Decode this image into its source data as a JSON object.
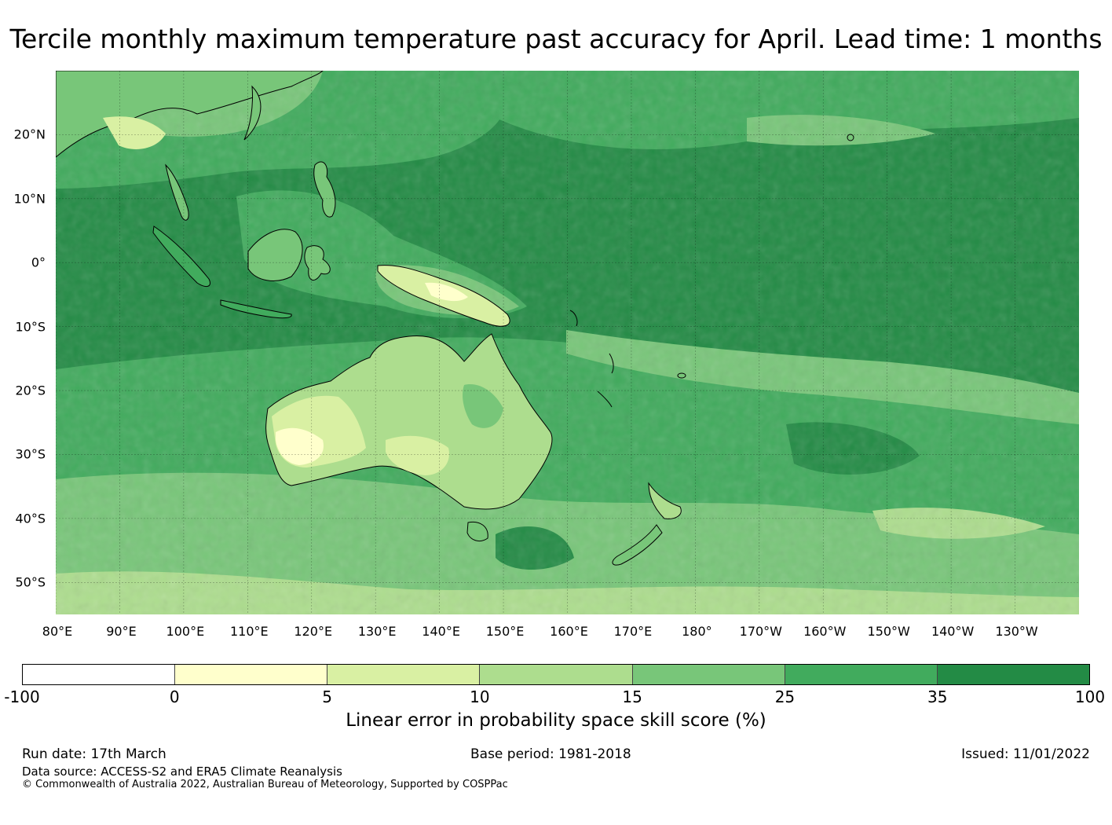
{
  "title": "Tercile monthly maximum temperature past accuracy for April. Lead time: 1 months",
  "map": {
    "lat_labels": [
      "20°N",
      "10°N",
      "0°",
      "10°S",
      "20°S",
      "30°S",
      "40°S",
      "50°S"
    ],
    "lon_labels": [
      "80°E",
      "90°E",
      "100°E",
      "110°E",
      "120°E",
      "130°E",
      "140°E",
      "150°E",
      "160°E",
      "170°E",
      "180°",
      "170°W",
      "160°W",
      "150°W",
      "140°W",
      "130°W"
    ],
    "lat_values": [
      20,
      10,
      0,
      -10,
      -20,
      -30,
      -40,
      -50
    ],
    "lon_values": [
      80,
      90,
      100,
      110,
      120,
      130,
      140,
      150,
      160,
      170,
      180,
      190,
      200,
      210,
      220,
      230
    ],
    "lat_range": [
      -55,
      30
    ],
    "lon_range": [
      80,
      240
    ]
  },
  "colorbar": {
    "ticks": [
      "-100",
      "0",
      "5",
      "10",
      "15",
      "25",
      "35",
      "100"
    ],
    "colors": [
      "#ffffff",
      "#ffffcc",
      "#d9f0a3",
      "#addd8e",
      "#78c679",
      "#41ab5d",
      "#238b45"
    ],
    "label": "Linear error in probability space skill score (%)"
  },
  "footer": {
    "run_date": "Run date: 17th March",
    "base_period": "Base period: 1981-2018",
    "issued": "Issued: 11/01/2022",
    "data_source": "Data source: ACCESS-S2 and ERA5 Climate Reanalysis",
    "copyright": "© Commonwealth of Australia 2022, Australian Bureau of Meteorology, Supported by COSPPac"
  }
}
